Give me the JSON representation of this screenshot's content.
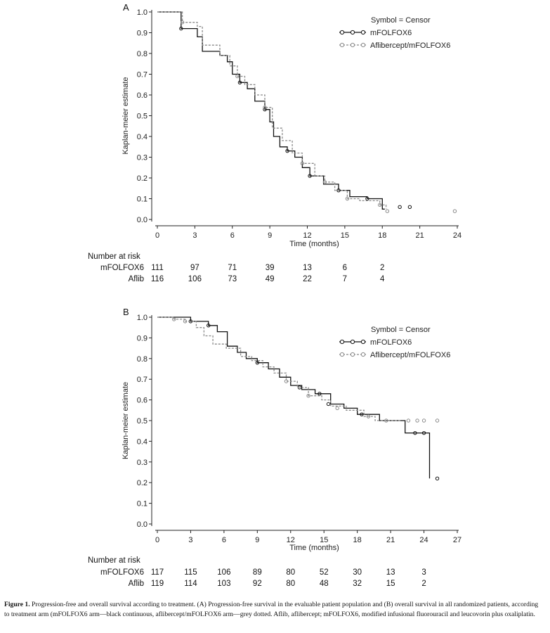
{
  "caption": {
    "label": "Figure 1.",
    "text": "Progression-free and overall survival according to treatment. (A) Progression-free survival in the evaluable patient population and (B) overall survival in all randomized patients, according to treatment arm (mFOLFOX6 arm—black continuous, aflibercept/mFOLFOX6 arm—grey dotted. Aflib, aflibercept; mFOLFOX6, modified infusional fluorouracil and leucovorin plus oxaliplatin."
  },
  "chart_data": [
    {
      "type": "line",
      "panel": "A",
      "title": "",
      "xlabel": "Time (months)",
      "ylabel": "Kaplan-meier estimate",
      "xlim": [
        0,
        24
      ],
      "ylim": [
        0,
        1.0
      ],
      "x_ticks": [
        "0",
        "3",
        "6",
        "9",
        "12",
        "15",
        "18",
        "21",
        "24"
      ],
      "y_ticks": [
        "0.0",
        "0.1",
        "0.2",
        "0.3",
        "0.4",
        "0.5",
        "0.6",
        "0.7",
        "0.8",
        "0.9",
        "1.0"
      ],
      "grid": false,
      "legend": {
        "title": "Symbol = Censor",
        "position": "top-right"
      },
      "series": [
        {
          "name": "mFOLFOX6",
          "color": "#111111",
          "style": "solid",
          "points": [
            [
              0,
              1.0
            ],
            [
              1.8,
              1.0
            ],
            [
              1.9,
              0.92
            ],
            [
              3.0,
              0.92
            ],
            [
              3.2,
              0.88
            ],
            [
              3.6,
              0.81
            ],
            [
              5.0,
              0.79
            ],
            [
              5.6,
              0.76
            ],
            [
              6.0,
              0.7
            ],
            [
              6.6,
              0.66
            ],
            [
              7.2,
              0.63
            ],
            [
              7.8,
              0.57
            ],
            [
              8.6,
              0.53
            ],
            [
              9.0,
              0.47
            ],
            [
              9.3,
              0.4
            ],
            [
              9.8,
              0.35
            ],
            [
              10.4,
              0.33
            ],
            [
              11.0,
              0.3
            ],
            [
              11.6,
              0.25
            ],
            [
              12.2,
              0.21
            ],
            [
              13.3,
              0.17
            ],
            [
              14.5,
              0.14
            ],
            [
              15.4,
              0.11
            ],
            [
              16.8,
              0.1
            ],
            [
              18.0,
              0.05
            ],
            [
              18.2,
              0.05
            ]
          ],
          "censors": [
            [
              1.9,
              0.92
            ],
            [
              6.6,
              0.66
            ],
            [
              8.6,
              0.53
            ],
            [
              10.4,
              0.33
            ],
            [
              12.2,
              0.21
            ],
            [
              14.5,
              0.14
            ],
            [
              16.8,
              0.1
            ],
            [
              19.4,
              0.06
            ],
            [
              20.2,
              0.06
            ]
          ]
        },
        {
          "name": "Aflibercept/mFOLFOX6",
          "color": "#8a8a8a",
          "style": "dashed",
          "points": [
            [
              0,
              1.0
            ],
            [
              1.8,
              1.0
            ],
            [
              2.0,
              0.95
            ],
            [
              3.2,
              0.93
            ],
            [
              3.6,
              0.84
            ],
            [
              5.0,
              0.79
            ],
            [
              5.8,
              0.74
            ],
            [
              6.4,
              0.69
            ],
            [
              7.0,
              0.65
            ],
            [
              7.8,
              0.6
            ],
            [
              8.6,
              0.54
            ],
            [
              9.2,
              0.44
            ],
            [
              10.0,
              0.38
            ],
            [
              10.8,
              0.32
            ],
            [
              11.6,
              0.27
            ],
            [
              12.6,
              0.21
            ],
            [
              13.4,
              0.18
            ],
            [
              14.2,
              0.14
            ],
            [
              15.2,
              0.1
            ],
            [
              16.2,
              0.09
            ],
            [
              17.8,
              0.07
            ],
            [
              18.3,
              0.05
            ]
          ],
          "censors": [
            [
              2.0,
              0.95
            ],
            [
              6.4,
              0.69
            ],
            [
              8.6,
              0.54
            ],
            [
              11.6,
              0.27
            ],
            [
              13.4,
              0.18
            ],
            [
              15.2,
              0.1
            ],
            [
              17.8,
              0.07
            ],
            [
              18.4,
              0.04
            ],
            [
              23.8,
              0.04
            ]
          ]
        }
      ],
      "number_at_risk": {
        "header": "Number at risk",
        "rows": [
          {
            "label": "mFOLFOX6",
            "values": [
              "111",
              "97",
              "71",
              "39",
              "13",
              "6",
              "2"
            ]
          },
          {
            "label": "Aflib",
            "values": [
              "116",
              "106",
              "73",
              "49",
              "22",
              "7",
              "4"
            ]
          }
        ]
      }
    },
    {
      "type": "line",
      "panel": "B",
      "title": "",
      "xlabel": "Time (months)",
      "ylabel": "Kaplan-meier estimate",
      "xlim": [
        0,
        27
      ],
      "ylim": [
        0,
        1.0
      ],
      "x_ticks": [
        "0",
        "3",
        "6",
        "9",
        "12",
        "15",
        "18",
        "21",
        "24",
        "27"
      ],
      "y_ticks": [
        "0.0",
        "0.1",
        "0.2",
        "0.3",
        "0.4",
        "0.5",
        "0.6",
        "0.7",
        "0.8",
        "0.9",
        "1.0"
      ],
      "grid": false,
      "legend": {
        "title": "Symbol = Censor",
        "position": "top-right"
      },
      "series": [
        {
          "name": "mFOLFOX6",
          "color": "#111111",
          "style": "solid",
          "points": [
            [
              0,
              1.0
            ],
            [
              2.0,
              1.0
            ],
            [
              3.0,
              0.98
            ],
            [
              4.6,
              0.96
            ],
            [
              5.4,
              0.93
            ],
            [
              6.3,
              0.86
            ],
            [
              7.2,
              0.83
            ],
            [
              8.0,
              0.8
            ],
            [
              9.0,
              0.78
            ],
            [
              10.0,
              0.75
            ],
            [
              11.0,
              0.71
            ],
            [
              12.0,
              0.67
            ],
            [
              13.0,
              0.65
            ],
            [
              14.2,
              0.63
            ],
            [
              15.6,
              0.58
            ],
            [
              16.8,
              0.56
            ],
            [
              18.0,
              0.53
            ],
            [
              20.0,
              0.5
            ],
            [
              22.0,
              0.5
            ],
            [
              22.3,
              0.44
            ],
            [
              24.0,
              0.44
            ],
            [
              24.5,
              0.44
            ],
            [
              24.5,
              0.22
            ]
          ],
          "censors": [
            [
              3.0,
              0.98
            ],
            [
              4.6,
              0.96
            ],
            [
              9.0,
              0.78
            ],
            [
              12.8,
              0.66
            ],
            [
              14.6,
              0.63
            ],
            [
              15.4,
              0.58
            ],
            [
              18.4,
              0.53
            ],
            [
              23.2,
              0.44
            ],
            [
              24.0,
              0.44
            ],
            [
              25.2,
              0.22
            ]
          ]
        },
        {
          "name": "Aflibercept/mFOLFOX6",
          "color": "#8a8a8a",
          "style": "dashed",
          "points": [
            [
              0,
              1.0
            ],
            [
              1.5,
              0.99
            ],
            [
              2.5,
              0.98
            ],
            [
              3.5,
              0.95
            ],
            [
              4.2,
              0.91
            ],
            [
              5.0,
              0.87
            ],
            [
              6.2,
              0.85
            ],
            [
              7.5,
              0.81
            ],
            [
              8.5,
              0.79
            ],
            [
              9.5,
              0.76
            ],
            [
              10.5,
              0.73
            ],
            [
              11.6,
              0.69
            ],
            [
              12.6,
              0.66
            ],
            [
              13.6,
              0.62
            ],
            [
              14.8,
              0.6
            ],
            [
              15.6,
              0.57
            ],
            [
              17.0,
              0.55
            ],
            [
              18.6,
              0.52
            ],
            [
              19.6,
              0.5
            ],
            [
              22.0,
              0.5
            ]
          ],
          "censors": [
            [
              1.5,
              0.99
            ],
            [
              2.5,
              0.98
            ],
            [
              11.6,
              0.69
            ],
            [
              13.6,
              0.62
            ],
            [
              16.2,
              0.56
            ],
            [
              19.0,
              0.52
            ],
            [
              20.6,
              0.5
            ],
            [
              22.6,
              0.5
            ],
            [
              23.4,
              0.5
            ],
            [
              24.0,
              0.5
            ],
            [
              25.2,
              0.5
            ]
          ]
        }
      ],
      "number_at_risk": {
        "header": "Number at risk",
        "rows": [
          {
            "label": "mFOLFOX6",
            "values": [
              "117",
              "115",
              "106",
              "89",
              "80",
              "52",
              "30",
              "13",
              "3"
            ]
          },
          {
            "label": "Aflib",
            "values": [
              "119",
              "114",
              "103",
              "92",
              "80",
              "48",
              "32",
              "15",
              "2"
            ]
          }
        ]
      }
    }
  ]
}
